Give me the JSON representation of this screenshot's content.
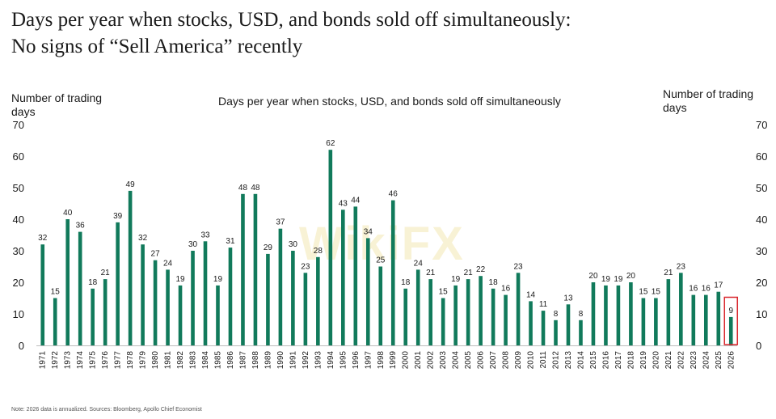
{
  "headline": {
    "line1": "Days per year when stocks, USD, and bonds sold off simultaneously:",
    "line2": "No signs of “Sell America” recently"
  },
  "watermark": "WikiFX",
  "footnote": "Note: 2026 data is annualized. Sources: Bloomberg, Apollo Chief Economist",
  "chart_data": {
    "type": "bar",
    "title": "Days per year when stocks, USD, and bonds sold off simultaneously",
    "ylabel_left": "Number of trading days",
    "ylabel_right": "Number of trading days",
    "xlabel": "",
    "ylim": [
      0,
      70
    ],
    "yticks": [
      0,
      10,
      20,
      30,
      40,
      50,
      60,
      70
    ],
    "grid": false,
    "legend": "none",
    "bar_color": "#117a5b",
    "highlight_color": "#d9262c",
    "highlight_category": "2026",
    "categories": [
      "1971",
      "1972",
      "1973",
      "1974",
      "1975",
      "1976",
      "1977",
      "1978",
      "1979",
      "1980",
      "1981",
      "1982",
      "1983",
      "1984",
      "1985",
      "1986",
      "1987",
      "1988",
      "1989",
      "1990",
      "1991",
      "1992",
      "1993",
      "1994",
      "1995",
      "1996",
      "1997",
      "1998",
      "1999",
      "2000",
      "2001",
      "2002",
      "2003",
      "2004",
      "2005",
      "2006",
      "2007",
      "2008",
      "2009",
      "2010",
      "2011",
      "2012",
      "2013",
      "2014",
      "2015",
      "2016",
      "2017",
      "2018",
      "2019",
      "2020",
      "2021",
      "2022",
      "2023",
      "2024",
      "2025",
      "2026"
    ],
    "values": [
      32,
      15,
      40,
      36,
      18,
      21,
      39,
      49,
      32,
      27,
      24,
      19,
      30,
      33,
      19,
      31,
      48,
      48,
      29,
      37,
      30,
      23,
      28,
      62,
      43,
      44,
      34,
      25,
      46,
      18,
      24,
      21,
      15,
      19,
      21,
      22,
      18,
      16,
      23,
      14,
      11,
      8,
      13,
      8,
      20,
      19,
      19,
      20,
      15,
      15,
      21,
      23,
      16,
      16,
      17,
      9
    ]
  }
}
